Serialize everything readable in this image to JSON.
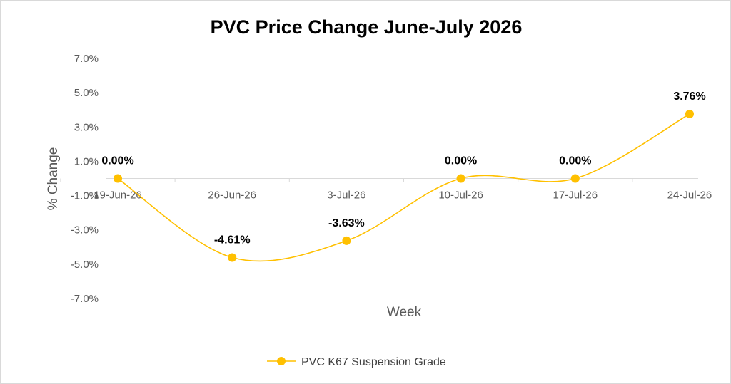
{
  "chart_data": {
    "type": "line",
    "title": "PVC Price Change June-July 2026",
    "xlabel": "Week",
    "ylabel": "% Change",
    "categories": [
      "19-Jun-26",
      "26-Jun-26",
      "3-Jul-26",
      "10-Jul-26",
      "17-Jul-26",
      "24-Jul-26"
    ],
    "series": [
      {
        "name": "PVC K67 Suspension Grade",
        "values": [
          0.0,
          -4.61,
          -3.63,
          0.0,
          0.0,
          3.76
        ],
        "data_labels": [
          "0.00%",
          "-4.61%",
          "-3.63%",
          "0.00%",
          "0.00%",
          "3.76%"
        ],
        "color": "#FFC000",
        "smooth": true
      }
    ],
    "y_ticks": [
      {
        "value": 7.0,
        "label": "7.0%"
      },
      {
        "value": 5.0,
        "label": "5.0%"
      },
      {
        "value": 3.0,
        "label": "3.0%"
      },
      {
        "value": 1.0,
        "label": "1.0%"
      },
      {
        "value": -1.0,
        "label": "-1.0%"
      },
      {
        "value": -3.0,
        "label": "-3.0%"
      },
      {
        "value": -5.0,
        "label": "-5.0%"
      },
      {
        "value": -7.0,
        "label": "-7.0%"
      }
    ],
    "ylim": [
      -7,
      7
    ],
    "grid": false,
    "legend": "bottom",
    "axis_color": "#d9d9d9"
  }
}
